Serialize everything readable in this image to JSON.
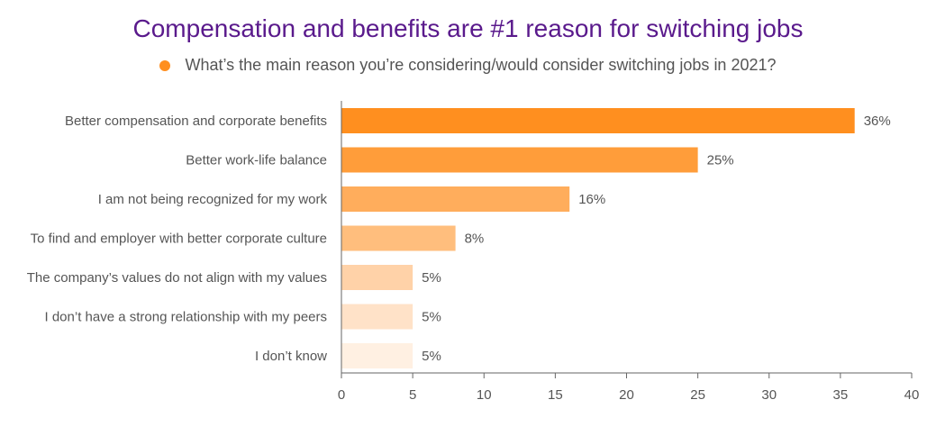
{
  "chart_data": {
    "type": "bar",
    "orientation": "horizontal",
    "title": "Compensation and benefits are #1 reason for switching jobs",
    "legend": "What’s the main reason you’re considering/would consider switching jobs in 2021?",
    "categories": [
      "Better compensation and corporate benefits",
      "Better work-life balance",
      "I am not being recognized for my work",
      "To find and employer with better corporate culture",
      "The company’s values do not align with my values",
      "I don’t have a strong relationship with my peers",
      "I don’t know"
    ],
    "values": [
      36,
      25,
      16,
      8,
      5,
      5,
      5
    ],
    "value_labels": [
      "36%",
      "25%",
      "16%",
      "8%",
      "5%",
      "5%",
      "5%"
    ],
    "bar_colors": [
      "#ff8f1f",
      "#ff9d3a",
      "#ffad5c",
      "#ffbe7d",
      "#ffd2a8",
      "#ffe2c8",
      "#fff0e2"
    ],
    "xlim": [
      0,
      40
    ],
    "xticks": [
      0,
      5,
      10,
      15,
      20,
      25,
      30,
      35,
      40
    ],
    "xlabel": "",
    "ylabel": ""
  },
  "colors": {
    "title": "#5a1a8c",
    "legend_marker": "#ff8f1f",
    "axis": "#666666"
  }
}
